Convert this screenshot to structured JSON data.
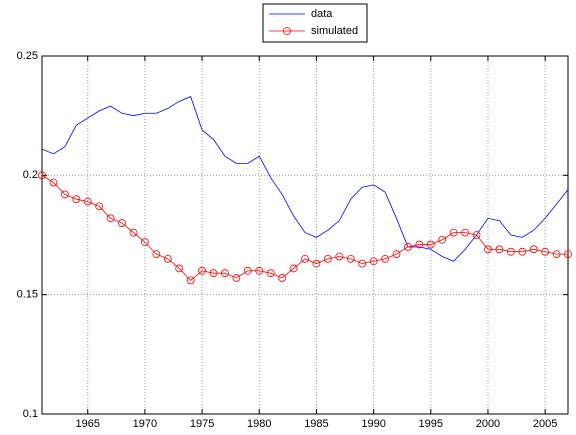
{
  "chart_data": {
    "type": "line",
    "x": [
      1961,
      1962,
      1963,
      1964,
      1965,
      1966,
      1967,
      1968,
      1969,
      1970,
      1971,
      1972,
      1973,
      1974,
      1975,
      1976,
      1977,
      1978,
      1979,
      1980,
      1981,
      1982,
      1983,
      1984,
      1985,
      1986,
      1987,
      1988,
      1989,
      1990,
      1991,
      1992,
      1993,
      1994,
      1995,
      1996,
      1997,
      1998,
      1999,
      2000,
      2001,
      2002,
      2003,
      2004,
      2005,
      2006,
      2007
    ],
    "series": [
      {
        "name": "data",
        "color": "#0000ff",
        "marker": "none",
        "values": [
          0.211,
          0.209,
          0.212,
          0.221,
          0.224,
          0.227,
          0.229,
          0.226,
          0.225,
          0.226,
          0.226,
          0.228,
          0.231,
          0.233,
          0.219,
          0.215,
          0.208,
          0.205,
          0.205,
          0.208,
          0.199,
          0.192,
          0.183,
          0.176,
          0.174,
          0.177,
          0.181,
          0.19,
          0.195,
          0.196,
          0.193,
          0.182,
          0.17,
          0.17,
          0.169,
          0.166,
          0.164,
          0.169,
          0.175,
          0.182,
          0.181,
          0.175,
          0.174,
          0.177,
          0.182,
          0.188,
          0.194
        ]
      },
      {
        "name": "simulated",
        "color": "#ff0000",
        "marker": "circle",
        "values": [
          0.2,
          0.197,
          0.192,
          0.19,
          0.189,
          0.187,
          0.182,
          0.18,
          0.176,
          0.172,
          0.167,
          0.165,
          0.161,
          0.156,
          0.16,
          0.159,
          0.159,
          0.157,
          0.16,
          0.16,
          0.159,
          0.157,
          0.161,
          0.165,
          0.163,
          0.165,
          0.166,
          0.165,
          0.163,
          0.164,
          0.165,
          0.167,
          0.17,
          0.171,
          0.171,
          0.173,
          0.176,
          0.176,
          0.175,
          0.169,
          0.169,
          0.168,
          0.168,
          0.169,
          0.168,
          0.167,
          0.167
        ]
      }
    ],
    "xlim": [
      1961,
      2007
    ],
    "xticks": [
      1965,
      1970,
      1975,
      1980,
      1985,
      1990,
      1995,
      2000,
      2005
    ],
    "ylim": [
      0.1,
      0.25
    ],
    "yticks": [
      0.1,
      0.15,
      0.2,
      0.25
    ],
    "grid": true,
    "legend": "top"
  }
}
